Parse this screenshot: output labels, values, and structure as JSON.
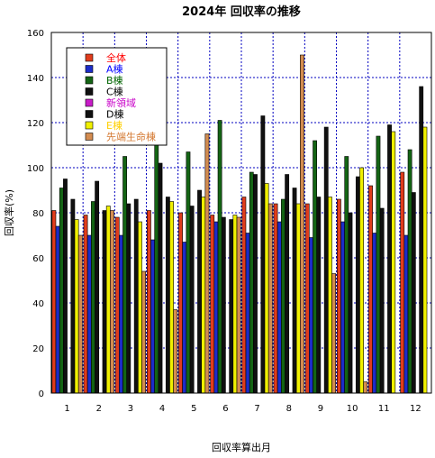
{
  "chart_data": {
    "type": "bar",
    "title": "2024年 回収率の推移",
    "xlabel": "回収率算出月",
    "ylabel": "回収率(%)",
    "ylim": [
      0,
      160
    ],
    "yticks": [
      0,
      20,
      40,
      60,
      80,
      100,
      120,
      140,
      160
    ],
    "grid": true,
    "legend_position": "top-left",
    "categories": [
      "1",
      "2",
      "3",
      "4",
      "5",
      "6",
      "7",
      "8",
      "9",
      "10",
      "11",
      "12"
    ],
    "series": [
      {
        "name": "全体",
        "color": "#e03c1c",
        "label_color": "#ff0000",
        "values": [
          81,
          79,
          78,
          81,
          80,
          79,
          87,
          84,
          84,
          86,
          92,
          98
        ]
      },
      {
        "name": "A棟",
        "color": "#1c2cc8",
        "label_color": "#0000ff",
        "values": [
          74,
          70,
          70,
          68,
          67,
          76,
          71,
          76,
          69,
          76,
          71,
          70
        ]
      },
      {
        "name": "B棟",
        "color": "#146414",
        "label_color": "#006400",
        "values": [
          91,
          85,
          105,
          114,
          107,
          121,
          98,
          86,
          112,
          105,
          114,
          108
        ]
      },
      {
        "name": "C棟",
        "color": "#101010",
        "label_color": "#000000",
        "values": [
          95,
          94,
          84,
          102,
          83,
          78,
          97,
          97,
          87,
          80,
          82,
          89
        ]
      },
      {
        "name": "新領域",
        "color": "#c81cc8",
        "label_color": "#c800c8",
        "values": [
          0,
          0,
          0,
          0,
          0,
          0,
          0,
          0,
          0,
          0,
          0,
          0
        ]
      },
      {
        "name": "D棟",
        "color": "#101010",
        "label_color": "#000000",
        "values": [
          86,
          81,
          86,
          87,
          90,
          77,
          123,
          91,
          118,
          96,
          119,
          136
        ]
      },
      {
        "name": "E棟",
        "color": "#f0f000",
        "label_color": "#ffd000",
        "values": [
          77,
          83,
          76,
          85,
          87,
          79,
          93,
          84,
          87,
          100,
          116,
          118
        ]
      },
      {
        "name": "先端生命棟",
        "color": "#d48c50",
        "label_color": "#d47830",
        "values": [
          70,
          81,
          54,
          37,
          115,
          78,
          84,
          150,
          53,
          5,
          0,
          0
        ]
      }
    ]
  }
}
